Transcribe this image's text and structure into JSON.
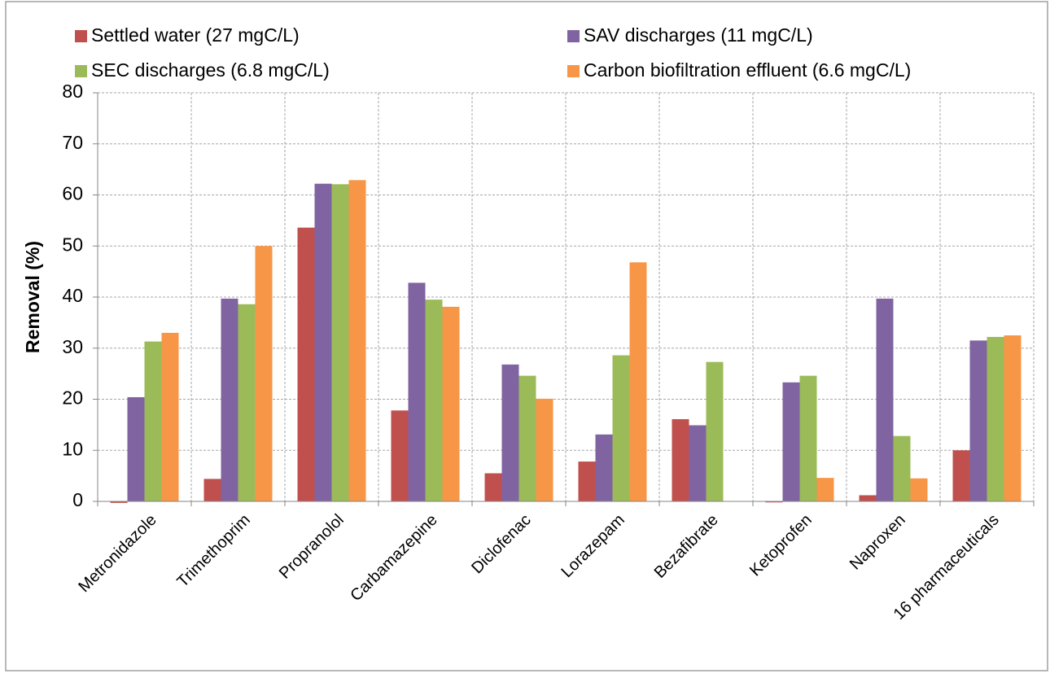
{
  "chart_data": {
    "type": "bar",
    "y_label": "Removal (%)",
    "categories": [
      "Metronidazole",
      "Trimethoprim",
      "Propranolol",
      "Carbamazepine",
      "Diclofenac",
      "Lorazepam",
      "Bezafibrate",
      "Ketoprofen",
      "Naproxen",
      "16 pharmaceuticals"
    ],
    "series": [
      {
        "name": "Settled water (27 mgC/L)",
        "color": "#c0504d",
        "values": [
          -0.3,
          4.4,
          53.6,
          17.8,
          5.5,
          7.8,
          16.1,
          -0.2,
          1.2,
          10.0
        ]
      },
      {
        "name": "SAV discharges (11 mgC/L)",
        "color": "#8064a2",
        "values": [
          20.4,
          39.7,
          62.2,
          42.8,
          26.8,
          13.1,
          14.9,
          23.3,
          39.7,
          31.5
        ]
      },
      {
        "name": "SEC discharges (6.8 mgC/L)",
        "color": "#9bbb59",
        "values": [
          31.3,
          38.6,
          62.1,
          39.5,
          24.6,
          28.6,
          27.3,
          24.6,
          12.8,
          32.2
        ]
      },
      {
        "name": "Carbon biofiltration effluent (6.6 mgC/L)",
        "color": "#f79646",
        "values": [
          33.0,
          50.0,
          62.9,
          38.1,
          20.1,
          46.8,
          0,
          4.6,
          4.5,
          32.5
        ]
      }
    ],
    "ylim": [
      0,
      80
    ],
    "yticks": [
      0,
      10,
      20,
      30,
      40,
      50,
      60,
      70,
      80
    ],
    "grid": true,
    "legend": "top"
  }
}
